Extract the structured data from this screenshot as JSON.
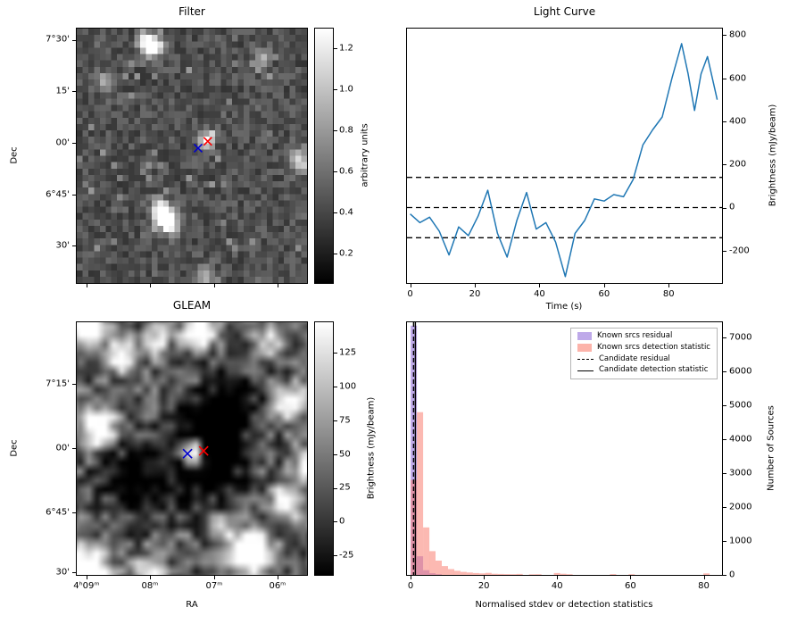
{
  "figure": {
    "background": "#ffffff"
  },
  "colors": {
    "line": "#1f77b4",
    "marker_blue": "#0000cd",
    "marker_red": "#ff0000",
    "hist_purple": "#9370db",
    "hist_pink": "#fa8072"
  },
  "chart_data": [
    {
      "id": "filter",
      "type": "heatmap",
      "title": "Filter",
      "ylabel": "Dec",
      "ytick_labels": [
        "7°30'",
        "15'",
        "00'",
        "6°45'",
        "30'"
      ],
      "colorbar": {
        "label": "arbitrary units",
        "ticks": [
          0.2,
          0.4,
          0.6,
          0.8,
          1.0,
          1.2
        ],
        "vmin": 0.05,
        "vmax": 1.3
      },
      "markers": [
        {
          "shape": "x",
          "color": "#0000cd",
          "fx": 0.527,
          "fy": 0.47
        },
        {
          "shape": "x",
          "color": "#ff0000",
          "fx": 0.569,
          "fy": 0.443
        }
      ],
      "bright_sources": [
        {
          "fx": 0.33,
          "fy": 0.07,
          "amp": 0.85,
          "r": 0.03
        },
        {
          "fx": 0.3,
          "fy": 0.055,
          "amp": 0.5,
          "r": 0.025
        },
        {
          "fx": 0.555,
          "fy": 0.445,
          "amp": 0.55,
          "r": 0.022
        },
        {
          "fx": 0.585,
          "fy": 0.425,
          "amp": 0.45,
          "r": 0.02
        },
        {
          "fx": 0.38,
          "fy": 0.735,
          "amp": 1.1,
          "r": 0.03
        },
        {
          "fx": 0.405,
          "fy": 0.775,
          "amp": 0.7,
          "r": 0.025
        },
        {
          "fx": 0.355,
          "fy": 0.7,
          "amp": 0.5,
          "r": 0.025
        },
        {
          "fx": 0.975,
          "fy": 0.52,
          "amp": 0.5,
          "r": 0.035
        },
        {
          "fx": 0.55,
          "fy": 0.975,
          "amp": 0.4,
          "r": 0.03
        },
        {
          "fx": 0.12,
          "fy": 0.21,
          "amp": 0.3,
          "r": 0.03
        },
        {
          "fx": 0.8,
          "fy": 0.115,
          "amp": 0.35,
          "r": 0.025
        }
      ]
    },
    {
      "id": "light_curve",
      "type": "line",
      "title": "Light Curve",
      "xlabel": "Time (s)",
      "ylabel": "Brightness (mJy/beam)",
      "xticks": [
        0,
        20,
        40,
        60,
        80
      ],
      "yticks": [
        -200,
        0,
        200,
        400,
        600,
        800
      ],
      "xlim": [
        -1,
        96.5
      ],
      "ylim": [
        -350,
        830
      ],
      "dashed_levels": [
        140,
        0,
        -140
      ],
      "x": [
        0,
        3,
        6,
        9,
        12,
        15,
        18,
        21,
        24,
        27,
        30,
        33,
        36,
        39,
        42,
        45,
        48,
        51,
        54,
        57,
        60,
        63,
        66,
        69,
        72,
        75,
        78,
        81,
        84,
        86,
        88,
        90,
        92,
        95
      ],
      "y": [
        -30,
        -70,
        -45,
        -110,
        -220,
        -90,
        -130,
        -40,
        80,
        -120,
        -230,
        -60,
        70,
        -100,
        -70,
        -160,
        -320,
        -120,
        -60,
        40,
        30,
        60,
        50,
        130,
        290,
        360,
        420,
        600,
        760,
        620,
        450,
        620,
        700,
        500
      ]
    },
    {
      "id": "gleam",
      "type": "heatmap",
      "title": "GLEAM",
      "xlabel": "RA",
      "ylabel": "Dec",
      "xtick_labels": [
        "4ʰ09ᵐ",
        "08ᵐ",
        "07ᵐ",
        "06ᵐ"
      ],
      "ytick_labels": [
        "7°15'",
        "00'",
        "6°45'",
        "30'"
      ],
      "colorbar": {
        "label": "Brightness (mJy/beam)",
        "ticks": [
          -25,
          0,
          25,
          50,
          75,
          100,
          125
        ],
        "vmin": -40,
        "vmax": 148
      },
      "markers": [
        {
          "shape": "x",
          "color": "#0000cd",
          "fx": 0.481,
          "fy": 0.52
        },
        {
          "shape": "x",
          "color": "#ff0000",
          "fx": 0.551,
          "fy": 0.509
        }
      ],
      "bright_sources": [
        {
          "fx": 0.07,
          "fy": 0.035,
          "amp": 1.6,
          "r": 0.045
        },
        {
          "fx": 0.53,
          "fy": 0.06,
          "amp": 1.5,
          "r": 0.04
        },
        {
          "fx": 0.21,
          "fy": 0.16,
          "amp": 0.9,
          "r": 0.038
        },
        {
          "fx": 0.36,
          "fy": 0.1,
          "amp": 0.6,
          "r": 0.035
        },
        {
          "fx": 0.9,
          "fy": 0.33,
          "amp": 1.0,
          "r": 0.04
        },
        {
          "fx": 0.12,
          "fy": 0.42,
          "amp": 1.2,
          "r": 0.045
        },
        {
          "fx": 0.51,
          "fy": 0.515,
          "amp": 1.9,
          "r": 0.034
        },
        {
          "fx": 0.53,
          "fy": 0.52,
          "amp": -0.65,
          "r": 0.11
        },
        {
          "fx": 0.6,
          "fy": 0.5,
          "amp": -0.9,
          "r": 0.05
        },
        {
          "fx": 0.88,
          "fy": 0.7,
          "amp": 1.0,
          "r": 0.04
        },
        {
          "fx": 0.97,
          "fy": 0.56,
          "amp": 0.8,
          "r": 0.04
        },
        {
          "fx": 0.74,
          "fy": 0.88,
          "amp": 1.5,
          "r": 0.05
        },
        {
          "fx": 0.05,
          "fy": 0.96,
          "amp": 1.8,
          "r": 0.06
        },
        {
          "fx": 0.33,
          "fy": 0.95,
          "amp": 0.8,
          "r": 0.04
        },
        {
          "fx": 0.63,
          "fy": 0.8,
          "amp": 0.6,
          "r": 0.035
        },
        {
          "fx": 0.25,
          "fy": 0.62,
          "amp": -0.5,
          "r": 0.08
        },
        {
          "fx": 0.66,
          "fy": 0.33,
          "amp": -0.45,
          "r": 0.08
        },
        {
          "fx": 0.82,
          "fy": 0.1,
          "amp": 0.5,
          "r": 0.04
        }
      ]
    },
    {
      "id": "histogram",
      "type": "bar",
      "xlabel": "Normalised stdev or detection statistics",
      "ylabel": "Number of Sources",
      "xticks": [
        0,
        20,
        40,
        60,
        80
      ],
      "yticks": [
        0,
        1000,
        2000,
        3000,
        4000,
        5000,
        6000,
        7000
      ],
      "xlim": [
        -1,
        85
      ],
      "ylim": [
        0,
        7450
      ],
      "bin_width": 1.7,
      "series": [
        {
          "name": "Known srcs residual",
          "color": "#9370db",
          "alpha": 0.6,
          "bins": [
            [
              0,
              7350
            ],
            [
              1.7,
              550
            ],
            [
              3.4,
              140
            ],
            [
              5.1,
              50
            ],
            [
              6.8,
              20
            ]
          ]
        },
        {
          "name": "Known srcs detection statistic",
          "color": "#fa8072",
          "alpha": 0.55,
          "bins": [
            [
              0,
              2800
            ],
            [
              1.7,
              4800
            ],
            [
              3.4,
              1400
            ],
            [
              5.1,
              700
            ],
            [
              6.8,
              420
            ],
            [
              8.5,
              260
            ],
            [
              10.2,
              170
            ],
            [
              11.9,
              120
            ],
            [
              13.6,
              90
            ],
            [
              15.3,
              70
            ],
            [
              17,
              55
            ],
            [
              18.7,
              45
            ],
            [
              20.4,
              60
            ],
            [
              22.1,
              35
            ],
            [
              23.8,
              30
            ],
            [
              25.5,
              25
            ],
            [
              27.2,
              20
            ],
            [
              28.9,
              30
            ],
            [
              32.3,
              18
            ],
            [
              34,
              20
            ],
            [
              39.1,
              55
            ],
            [
              40.8,
              35
            ],
            [
              42.5,
              20
            ],
            [
              54.4,
              25
            ],
            [
              59.5,
              20
            ],
            [
              79.9,
              45
            ]
          ]
        }
      ],
      "vlines": [
        {
          "name": "Candidate residual",
          "style": "dashed",
          "x": 0.8
        },
        {
          "name": "Candidate detection statistic",
          "style": "solid",
          "x": 1.3
        }
      ],
      "legend": [
        {
          "label": "Known srcs residual",
          "swatch": "patch",
          "color": "#9370db"
        },
        {
          "label": "Known srcs detection statistic",
          "swatch": "patch",
          "color": "#fa8072"
        },
        {
          "label": "Candidate residual",
          "swatch": "dashed"
        },
        {
          "label": "Candidate detection statistic",
          "swatch": "solid"
        }
      ]
    }
  ]
}
